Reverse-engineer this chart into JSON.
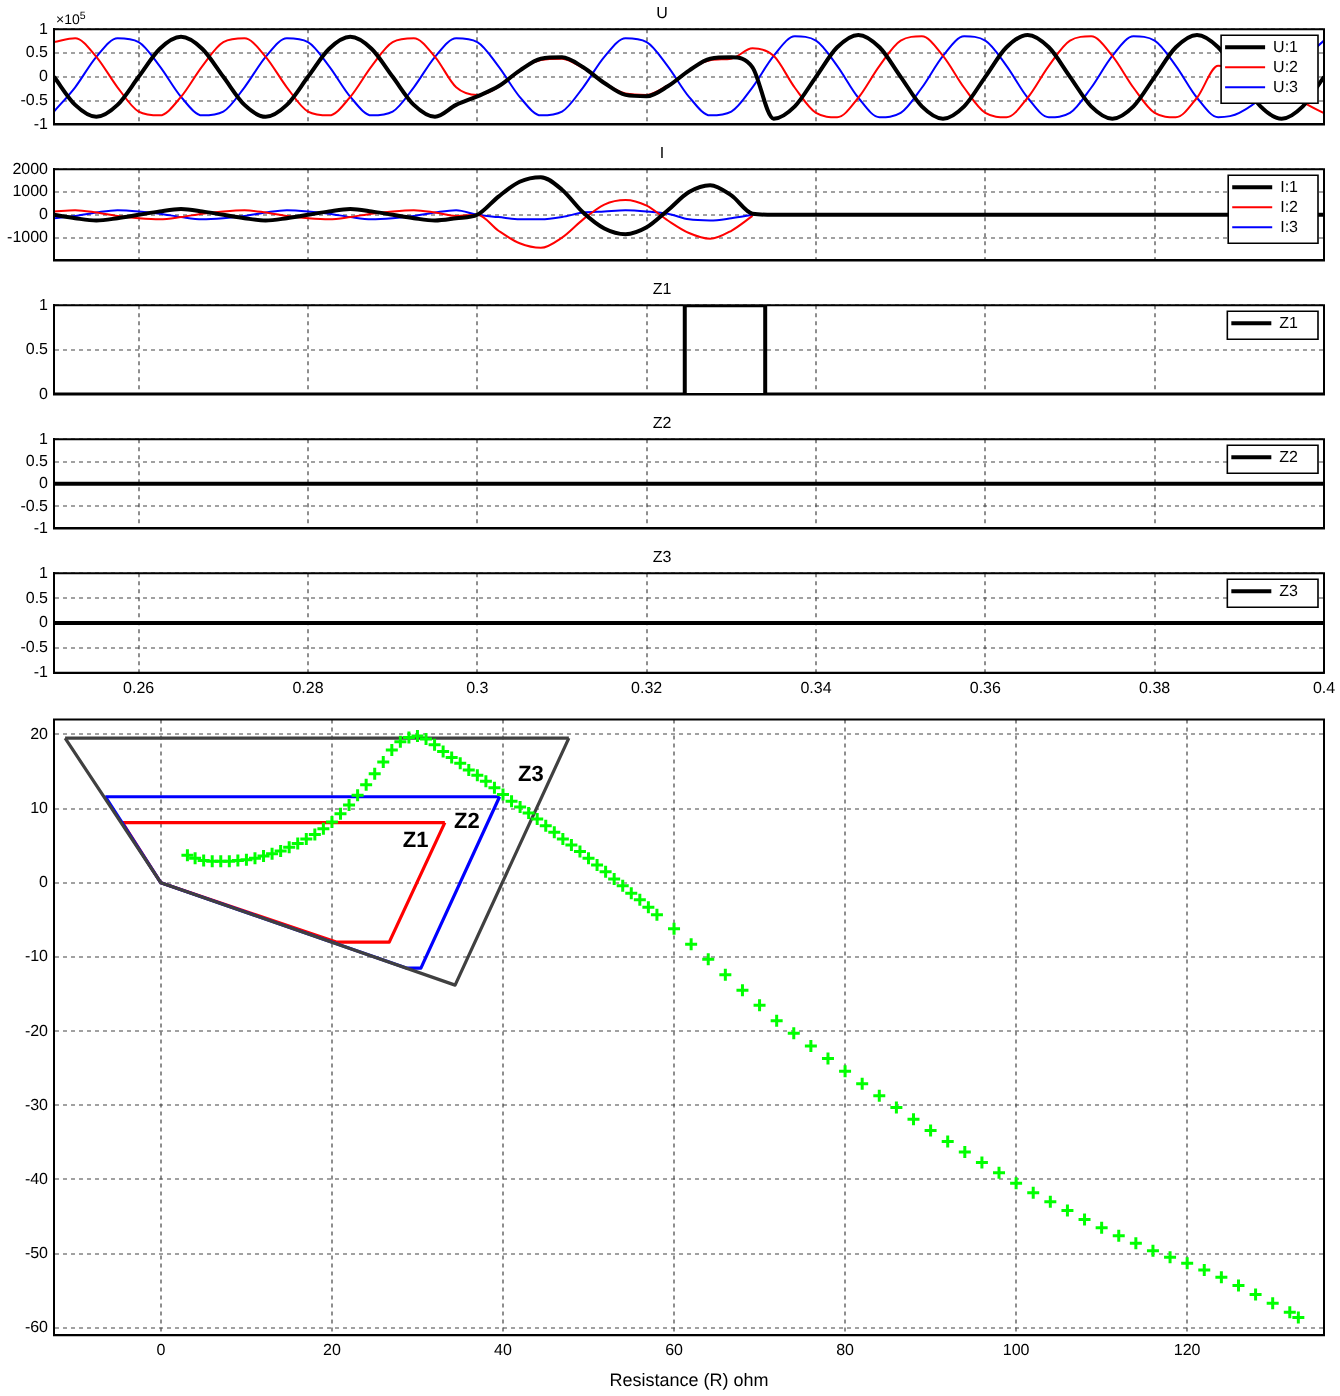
{
  "chart_data": [
    {
      "type": "line",
      "title": "U",
      "annotations": [
        "×10$^{5}$"
      ],
      "x": [
        0.25,
        0.2525,
        0.255,
        0.2575,
        0.26,
        0.2625,
        0.265,
        0.2675,
        0.27,
        0.2725,
        0.275,
        0.2775,
        0.28,
        0.2825,
        0.285,
        0.2875,
        0.29,
        0.2925,
        0.295,
        0.2975,
        0.3,
        0.3025,
        0.305,
        0.3075,
        0.31,
        0.3125,
        0.315,
        0.3175,
        0.32,
        0.3225,
        0.325,
        0.3275,
        0.33,
        0.3325,
        0.335,
        0.3375,
        0.34,
        0.3425,
        0.345,
        0.3475,
        0.35,
        0.3525,
        0.355,
        0.3575,
        0.36,
        0.3625,
        0.365,
        0.3675,
        0.37,
        0.3725,
        0.375,
        0.3775,
        0.38,
        0.3825,
        0.385,
        0.3875,
        0.39,
        0.3925,
        0.395,
        0.3975,
        0.4
      ],
      "series": [
        {
          "name": "U:1",
          "color": "#000000",
          "values": [
            0,
            -0.59,
            -0.84,
            -0.59,
            0,
            0.59,
            0.84,
            0.59,
            0,
            -0.59,
            -0.84,
            -0.59,
            0,
            0.59,
            0.84,
            0.59,
            0,
            -0.59,
            -0.84,
            -0.59,
            -0.41,
            -0.2,
            0.13,
            0.38,
            0.41,
            0.2,
            -0.13,
            -0.38,
            -0.41,
            -0.2,
            0.13,
            0.38,
            0.41,
            0.2,
            -0.88,
            -0.62,
            0,
            0.62,
            0.88,
            0.62,
            0,
            -0.62,
            -0.88,
            -0.62,
            0,
            0.62,
            0.88,
            0.62,
            0,
            -0.62,
            -0.88,
            -0.62,
            0,
            0.62,
            0.88,
            0.62,
            null,
            -0.62,
            -0.88,
            -0.62,
            0
          ]
        },
        {
          "name": "U:2",
          "color": "#ff0000",
          "values": [
            0.73,
            0.81,
            0.42,
            -0.22,
            -0.73,
            -0.81,
            -0.42,
            0.22,
            0.73,
            0.81,
            0.42,
            -0.22,
            -0.73,
            -0.81,
            -0.42,
            0.22,
            0.73,
            0.81,
            0.42,
            -0.22,
            -0.38,
            null,
            null,
            0.35,
            0.38,
            0.18,
            null,
            -0.35,
            -0.38,
            -0.18,
            null,
            0.35,
            0.38,
            0.6,
            0.44,
            -0.23,
            -0.76,
            -0.85,
            -0.44,
            0.23,
            0.76,
            0.85,
            0.44,
            -0.23,
            -0.76,
            -0.85,
            -0.44,
            0.23,
            0.76,
            0.85,
            0.44,
            -0.23,
            -0.76,
            -0.85,
            -0.44,
            0.23,
            null,
            null,
            null,
            null,
            -0.76
          ]
        },
        {
          "name": "U:3",
          "color": "#0000ff",
          "values": [
            -0.73,
            -0.22,
            0.42,
            0.81,
            0.73,
            0.22,
            -0.42,
            -0.81,
            -0.73,
            -0.22,
            0.42,
            0.81,
            0.73,
            0.22,
            -0.42,
            -0.81,
            -0.73,
            -0.22,
            0.42,
            0.81,
            0.73,
            0.22,
            -0.42,
            -0.81,
            -0.73,
            -0.22,
            0.42,
            0.81,
            0.73,
            0.22,
            -0.42,
            -0.81,
            -0.73,
            -0.22,
            0.44,
            0.85,
            0.76,
            0.23,
            -0.44,
            -0.85,
            -0.76,
            -0.23,
            0.44,
            0.85,
            0.76,
            0.23,
            -0.44,
            -0.85,
            -0.76,
            -0.23,
            0.44,
            0.85,
            0.76,
            0.23,
            -0.44,
            -0.85,
            -0.76,
            null,
            null,
            null,
            0.76
          ]
        }
      ],
      "xlim": [
        0.25,
        0.4
      ],
      "xticks": [
        0.26,
        0.28,
        0.3,
        0.32,
        0.34,
        0.36,
        0.38,
        0.4
      ],
      "ylim": [
        -1,
        1
      ],
      "yticks": [
        -1,
        -0.5,
        0,
        0.5,
        1
      ],
      "grid": true,
      "legend": "top right",
      "tick_labels": "y"
    },
    {
      "type": "line",
      "title": "I",
      "x": [
        0.25,
        0.2525,
        0.255,
        0.2575,
        0.26,
        0.2625,
        0.265,
        0.2675,
        0.27,
        0.2725,
        0.275,
        0.2775,
        0.28,
        0.2825,
        0.285,
        0.2875,
        0.29,
        0.2925,
        0.295,
        0.2975,
        0.3,
        0.3025,
        0.305,
        0.3075,
        0.31,
        0.3125,
        0.315,
        0.3175,
        0.32,
        0.3225,
        0.325,
        0.3275,
        0.33,
        0.3325,
        0.335,
        0.3375,
        0.34,
        0.3425,
        0.345,
        0.3475,
        0.35,
        0.3525,
        0.355,
        0.3575,
        0.36,
        0.3625,
        0.365,
        0.3675,
        0.37,
        0.3725,
        0.375,
        0.3775,
        0.38,
        0.3825,
        0.385,
        0.3875,
        0.39,
        0.3925,
        0.395,
        0.3975,
        0.4
      ],
      "series": [
        {
          "name": "I:1",
          "color": "#000000",
          "values": [
            0,
            -150,
            -250,
            -150,
            0,
            150,
            250,
            150,
            0,
            -150,
            -250,
            -150,
            0,
            150,
            250,
            150,
            0,
            -150,
            -250,
            -150,
            0,
            800,
            1450,
            1650,
            1100,
            100,
            -600,
            -850,
            -550,
            200,
            1000,
            1300,
            850,
            50,
            0,
            0,
            0,
            0,
            0,
            0,
            0,
            0,
            0,
            0,
            0,
            0,
            0,
            0,
            0,
            0,
            0,
            0,
            0,
            0,
            0,
            0,
            null,
            null,
            null,
            null,
            0
          ]
        },
        {
          "name": "I:2",
          "color": "#ff0000",
          "values": [
            150,
            200,
            100,
            -50,
            -150,
            -200,
            -100,
            50,
            150,
            200,
            100,
            -50,
            -150,
            -200,
            -100,
            50,
            150,
            200,
            100,
            -50,
            0,
            -700,
            -1250,
            -1450,
            -1000,
            -200,
            450,
            650,
            400,
            -250,
            -800,
            -1050,
            -700,
            -50,
            null,
            null,
            null,
            null,
            null,
            null,
            null,
            null,
            null,
            null,
            null,
            null,
            null,
            null,
            null,
            null,
            null,
            null,
            null,
            null,
            null,
            null,
            null,
            null,
            null,
            null,
            null
          ]
        },
        {
          "name": "I:3",
          "color": "#0000ff",
          "values": [
            -150,
            -50,
            100,
            200,
            150,
            50,
            -100,
            -200,
            -150,
            -50,
            100,
            200,
            150,
            50,
            -100,
            -200,
            -150,
            -50,
            100,
            200,
            0,
            -100,
            -200,
            -200,
            -100,
            100,
            150,
            200,
            150,
            50,
            -200,
            -250,
            -150,
            0,
            null,
            null,
            null,
            null,
            null,
            null,
            null,
            null,
            null,
            null,
            null,
            null,
            null,
            null,
            null,
            null,
            null,
            null,
            null,
            null,
            null,
            null,
            null,
            null,
            null,
            null,
            null
          ]
        }
      ],
      "xlim": [
        0.25,
        0.4
      ],
      "xticks": [
        0.26,
        0.28,
        0.3,
        0.32,
        0.34,
        0.36,
        0.38,
        0.4
      ],
      "ylim": [
        -2000,
        2000
      ],
      "yticks": [
        -1000,
        0,
        1000,
        2000
      ],
      "grid": true,
      "legend": "top right",
      "tick_labels": "y"
    },
    {
      "type": "line",
      "title": "Z1",
      "series": [
        {
          "name": "Z1",
          "color": "#000000",
          "x": [
            0.25,
            0.3245,
            0.3245,
            0.334,
            0.334,
            0.4
          ],
          "values": [
            0,
            0,
            1,
            1,
            0,
            0
          ]
        }
      ],
      "xlim": [
        0.25,
        0.4
      ],
      "xticks": [
        0.26,
        0.28,
        0.3,
        0.32,
        0.34,
        0.36,
        0.38,
        0.4
      ],
      "ylim": [
        0,
        1
      ],
      "yticks": [
        0,
        0.5,
        1
      ],
      "grid": true,
      "legend": "top right",
      "tick_labels": "y"
    },
    {
      "type": "line",
      "title": "Z2",
      "series": [
        {
          "name": "Z2",
          "color": "#000000",
          "x": [
            0.25,
            0.4
          ],
          "values": [
            0,
            0
          ]
        }
      ],
      "xlim": [
        0.25,
        0.4
      ],
      "xticks": [
        0.26,
        0.28,
        0.3,
        0.32,
        0.34,
        0.36,
        0.38,
        0.4
      ],
      "ylim": [
        -1,
        1
      ],
      "yticks": [
        -1,
        -0.5,
        0,
        0.5,
        1
      ],
      "grid": true,
      "legend": "top right",
      "tick_labels": "y"
    },
    {
      "type": "line",
      "title": "Z3",
      "series": [
        {
          "name": "Z3",
          "color": "#000000",
          "x": [
            0.25,
            0.4
          ],
          "values": [
            0,
            0
          ]
        }
      ],
      "xlim": [
        0.25,
        0.4
      ],
      "xticks": [
        0.26,
        0.28,
        0.3,
        0.32,
        0.34,
        0.36,
        0.38,
        0.4
      ],
      "ylim": [
        -1,
        1
      ],
      "yticks": [
        -1,
        -0.5,
        0,
        0.5,
        1
      ],
      "grid": true,
      "legend": "top right"
    },
    {
      "type": "line",
      "xlabel": "Resistance (R) ohm",
      "series": [
        {
          "color": "#404040",
          "x": [
            -11.2,
            47.7
          ],
          "values": [
            19.5,
            19.5
          ]
        },
        {
          "name": "Z3",
          "color": "#404040",
          "x": [
            -11.2,
            0,
            34.4,
            47.7
          ],
          "values": [
            19.5,
            0,
            -13.8,
            19.5
          ]
        },
        {
          "color": "#0000ff",
          "x": [
            -6.5,
            39.6
          ],
          "values": [
            11.6,
            11.6
          ]
        },
        {
          "name": "Z2",
          "color": "#0000ff",
          "x": [
            -6.5,
            0,
            28.7,
            30.4,
            39.6
          ],
          "values": [
            11.6,
            0,
            -11.5,
            -11.5,
            11.6
          ]
        },
        {
          "color": "#ff0000",
          "x": [
            -4.5,
            33.2
          ],
          "values": [
            8.1,
            8.1
          ]
        },
        {
          "name": "Z1",
          "color": "#ff0000",
          "x": [
            -4.5,
            0,
            20.5,
            26.7,
            33.2
          ],
          "values": [
            8.1,
            0,
            -8,
            -8,
            8.1
          ]
        },
        {
          "type": "scatter",
          "color": "#00ff00",
          "marker": "cross",
          "x": [
            3.1,
            4,
            5,
            6,
            7,
            8,
            9,
            10,
            11,
            12,
            13,
            14,
            15,
            16,
            17,
            18,
            19,
            20,
            21,
            22,
            23,
            24,
            25,
            26,
            27,
            28,
            29,
            30,
            31,
            32,
            33,
            34,
            35,
            36,
            37,
            38,
            39,
            40,
            41,
            42,
            43,
            44,
            45,
            46,
            47,
            48,
            49,
            50,
            51,
            52,
            53,
            54,
            55,
            56,
            57,
            58,
            60,
            62,
            64,
            66,
            68,
            70,
            72,
            74,
            76,
            78,
            80,
            82,
            84,
            86,
            88,
            90,
            92,
            94,
            96,
            98,
            100,
            102,
            104,
            106,
            108,
            110,
            112,
            114,
            116,
            118,
            120,
            122,
            124,
            126,
            128,
            130,
            132,
            133
          ],
          "values": [
            3.7,
            3.3,
            3.0,
            2.9,
            2.9,
            2.9,
            3.0,
            3.1,
            3.3,
            3.6,
            3.9,
            4.3,
            4.8,
            5.3,
            5.9,
            6.5,
            7.3,
            8.2,
            9.3,
            10.5,
            11.8,
            13.2,
            14.7,
            16.3,
            17.9,
            19.0,
            19.6,
            19.8,
            19.4,
            18.6,
            17.7,
            16.9,
            16.1,
            15.2,
            14.5,
            13.7,
            12.8,
            11.9,
            11.0,
            10.2,
            9.4,
            8.6,
            7.7,
            6.8,
            5.9,
            5.1,
            4.2,
            3.3,
            2.4,
            1.5,
            0.5,
            -0.4,
            -1.4,
            -2.3,
            -3.3,
            -4.3,
            -6.2,
            -8.3,
            -10.3,
            -12.4,
            -14.5,
            -16.5,
            -18.6,
            -20.3,
            -22.0,
            -23.7,
            -25.4,
            -27.1,
            -28.7,
            -30.3,
            -31.9,
            -33.4,
            -34.9,
            -36.3,
            -37.7,
            -39.1,
            -40.5,
            -41.8,
            -43.0,
            -44.2,
            -45.4,
            -46.5,
            -47.6,
            -48.6,
            -49.6,
            -50.5,
            -51.3,
            -52.2,
            -53.2,
            -54.3,
            -55.5,
            -56.7,
            -57.9,
            -58.6
          ]
        }
      ],
      "xlim": [
        -12.5,
        136
      ],
      "xticks": [
        0,
        20,
        40,
        60,
        80,
        100,
        120
      ],
      "ylim": [
        -61,
        22
      ],
      "yticks": [
        -60,
        -50,
        -40,
        -30,
        -20,
        -10,
        0,
        10,
        20
      ],
      "grid": true
    }
  ]
}
